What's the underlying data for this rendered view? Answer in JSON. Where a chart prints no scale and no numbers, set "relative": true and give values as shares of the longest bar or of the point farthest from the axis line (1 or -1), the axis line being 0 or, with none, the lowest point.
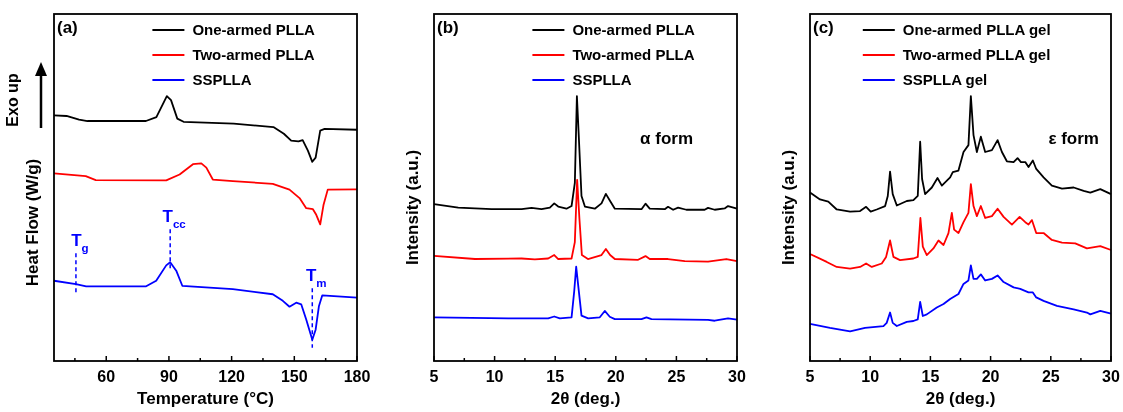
{
  "chart_data": [
    {
      "type": "line",
      "relative": true,
      "xlabel": "Temperature (°C)",
      "ylabel": "Heat Flow (W/g)",
      "legend": "top right",
      "xlim": [
        35,
        180
      ],
      "xticks": [
        {
          "value": 45,
          "label": null
        },
        60,
        {
          "value": 75,
          "label": null
        },
        90,
        {
          "value": 105,
          "label": null
        },
        120,
        {
          "value": 135,
          "label": null
        },
        150,
        {
          "value": 165,
          "label": null
        },
        180
      ],
      "annotations": [
        "(a)",
        "Exo up",
        {
          "text": "T$_{g}$",
          "x": 45.5,
          "y": 0.282
        },
        {
          "text": "T$_{cc}$",
          "x": 90.6,
          "y": 0.373
        },
        {
          "text": "T$_{m}$",
          "x": 158.6,
          "y": 0.08
        }
      ],
      "series": [
        {
          "name": "One-armed PLLA",
          "color": "#000000",
          "x": [
            35,
            41,
            47,
            51,
            79,
            84,
            89,
            91,
            94,
            97,
            121,
            140,
            145,
            148.5,
            152,
            154,
            156.5,
            158.6,
            160.2,
            162.4,
            164.5,
            180
          ],
          "values": [
            0.927,
            0.925,
            0.911,
            0.906,
            0.906,
            0.921,
            1.0,
            0.985,
            0.915,
            0.903,
            0.896,
            0.883,
            0.858,
            0.832,
            0.829,
            0.834,
            0.794,
            0.752,
            0.768,
            0.87,
            0.876,
            0.873
          ]
        },
        {
          "name": "Two-armed PLLA",
          "color": "#ff0000",
          "x": [
            35,
            50.2,
            55,
            88.7,
            95.1,
            101.5,
            105.5,
            107.9,
            111,
            120.6,
            139.7,
            147.7,
            152.5,
            155.7,
            158.9,
            160.5,
            162.4,
            164,
            166,
            180
          ],
          "values": [
            0.708,
            0.698,
            0.683,
            0.682,
            0.704,
            0.743,
            0.746,
            0.73,
            0.685,
            0.679,
            0.669,
            0.647,
            0.615,
            0.577,
            0.573,
            0.552,
            0.516,
            0.59,
            0.647,
            0.648
          ]
        },
        {
          "name": "SSPLLA",
          "color": "#0000ff",
          "x": [
            35,
            45.5,
            50.4,
            79.1,
            83.9,
            88.7,
            90.6,
            93.5,
            96.4,
            120.6,
            139.7,
            144.5,
            147.7,
            150.9,
            153.3,
            155.7,
            158.6,
            160.2,
            161.8,
            163.4,
            180
          ],
          "values": [
            0.303,
            0.29,
            0.282,
            0.282,
            0.303,
            0.361,
            0.373,
            0.341,
            0.284,
            0.271,
            0.252,
            0.227,
            0.205,
            0.22,
            0.214,
            0.157,
            0.08,
            0.118,
            0.208,
            0.248,
            0.239
          ]
        }
      ]
    },
    {
      "type": "line",
      "relative": true,
      "xlabel": "2θ (deg.)",
      "ylabel": "Intensity (a.u.)",
      "legend": "top right",
      "xlim": [
        5,
        30
      ],
      "xticks": [
        5,
        {
          "value": 7.5,
          "label": null
        },
        10,
        {
          "value": 12.5,
          "label": null
        },
        15,
        {
          "value": 17.5,
          "label": null
        },
        20,
        {
          "value": 22.5,
          "label": null
        },
        25,
        {
          "value": 27.5,
          "label": null
        },
        30
      ],
      "annotations": [
        "(b)",
        "α form"
      ],
      "series": [
        {
          "name": "One-armed PLLA",
          "color": "#000000",
          "x": [
            5,
            7,
            9.75,
            12.23,
            13.05,
            13.87,
            14.56,
            14.92,
            15.25,
            15.93,
            16.35,
            16.62,
            16.79,
            16.95,
            17.17,
            17.45,
            18.27,
            18.82,
            19.18,
            19.53,
            19.92,
            22.12,
            22.45,
            22.8,
            24.04,
            24.31,
            24.73,
            25.14,
            25.82,
            27.33,
            27.61,
            28.16,
            28.98,
            29.26,
            30
          ],
          "values": [
            0.592,
            0.579,
            0.573,
            0.573,
            0.578,
            0.573,
            0.579,
            0.595,
            0.583,
            0.575,
            0.585,
            0.672,
            1.0,
            0.845,
            0.623,
            0.583,
            0.575,
            0.595,
            0.631,
            0.604,
            0.575,
            0.573,
            0.594,
            0.575,
            0.573,
            0.582,
            0.571,
            0.579,
            0.571,
            0.571,
            0.578,
            0.571,
            0.576,
            0.585,
            0.575
          ]
        },
        {
          "name": "Two-armed PLLA",
          "color": "#ff0000",
          "x": [
            5,
            8.38,
            12.23,
            13.32,
            14.42,
            14.92,
            15.25,
            16.35,
            16.62,
            16.81,
            17,
            17.2,
            17.7,
            18.82,
            19.18,
            19.53,
            19.92,
            21.84,
            22.45,
            22.8,
            24.31,
            25.69,
            27.61,
            29.12,
            30
          ],
          "values": [
            0.397,
            0.385,
            0.387,
            0.384,
            0.387,
            0.4,
            0.385,
            0.387,
            0.449,
            0.684,
            0.536,
            0.4,
            0.385,
            0.4,
            0.423,
            0.4,
            0.385,
            0.382,
            0.396,
            0.385,
            0.385,
            0.377,
            0.375,
            0.385,
            0.377
          ]
        },
        {
          "name": "SSPLLA",
          "color": "#0000ff",
          "x": [
            5,
            11.13,
            14.42,
            14.92,
            15.38,
            16.35,
            16.57,
            16.73,
            16.92,
            17.17,
            17.72,
            18.68,
            19.09,
            19.5,
            19.92,
            22.12,
            22.53,
            22.94,
            27.61,
            28.16,
            29.26,
            30
          ],
          "values": [
            0.165,
            0.161,
            0.161,
            0.168,
            0.161,
            0.165,
            0.264,
            0.356,
            0.276,
            0.171,
            0.161,
            0.165,
            0.189,
            0.167,
            0.158,
            0.158,
            0.165,
            0.158,
            0.155,
            0.152,
            0.161,
            0.156
          ]
        }
      ]
    },
    {
      "type": "line",
      "relative": true,
      "xlabel": "2θ (deg.)",
      "ylabel": "Intensity (a.u.)",
      "legend": "top right",
      "xlim": [
        5,
        30
      ],
      "xticks": [
        5,
        {
          "value": 7.5,
          "label": null
        },
        10,
        {
          "value": 12.5,
          "label": null
        },
        15,
        {
          "value": 17.5,
          "label": null
        },
        20,
        {
          "value": 22.5,
          "label": null
        },
        25,
        {
          "value": 27.5,
          "label": null
        },
        30
      ],
      "annotations": [
        "(c)",
        "ε form"
      ],
      "series": [
        {
          "name": "One-armed PLLA gel",
          "color": "#000000",
          "x": [
            5,
            5.83,
            6.52,
            7.22,
            8.33,
            9.16,
            9.66,
            10.04,
            10.54,
            11.24,
            11.46,
            11.65,
            11.87,
            12.21,
            13.04,
            13.59,
            13.95,
            14.15,
            14.31,
            14.56,
            15.12,
            15.59,
            15.95,
            16.64,
            16.86,
            17.33,
            17.75,
            18.16,
            18.36,
            18.58,
            18.86,
            19.19,
            19.55,
            20.11,
            20.58,
            20.94,
            21.35,
            21.91,
            22.24,
            22.52,
            22.88,
            23.15,
            23.51,
            23.79,
            24.4,
            25.09,
            25.93,
            26.9,
            27.73,
            28.28,
            29.11,
            30
          ],
          "values": [
            0.636,
            0.61,
            0.602,
            0.572,
            0.564,
            0.566,
            0.582,
            0.564,
            0.572,
            0.585,
            0.623,
            0.715,
            0.63,
            0.587,
            0.604,
            0.607,
            0.623,
            0.828,
            0.687,
            0.63,
            0.655,
            0.691,
            0.662,
            0.693,
            0.713,
            0.719,
            0.789,
            0.815,
            1.0,
            0.853,
            0.789,
            0.847,
            0.789,
            0.796,
            0.834,
            0.789,
            0.754,
            0.751,
            0.766,
            0.751,
            0.751,
            0.732,
            0.757,
            0.725,
            0.693,
            0.662,
            0.651,
            0.655,
            0.642,
            0.636,
            0.649,
            0.63
          ]
        },
        {
          "name": "Two-armed PLLA gel",
          "color": "#ff0000",
          "x": [
            5,
            6.39,
            7.22,
            8.33,
            9.16,
            9.66,
            10.13,
            10.96,
            11.32,
            11.65,
            11.93,
            12.48,
            13.59,
            13.95,
            14.17,
            14.37,
            14.7,
            15.25,
            15.67,
            16.09,
            16.5,
            16.78,
            16.97,
            17.33,
            17.75,
            18.16,
            18.36,
            18.58,
            18.86,
            19.19,
            19.55,
            20.11,
            20.58,
            21.08,
            21.77,
            22.41,
            22.88,
            23.15,
            23.43,
            23.79,
            24.4,
            25.09,
            25.93,
            27.03,
            28,
            29.11,
            30
          ],
          "values": [
            0.404,
            0.374,
            0.355,
            0.349,
            0.355,
            0.368,
            0.355,
            0.368,
            0.393,
            0.455,
            0.393,
            0.381,
            0.387,
            0.393,
            0.54,
            0.432,
            0.4,
            0.425,
            0.455,
            0.438,
            0.483,
            0.559,
            0.496,
            0.483,
            0.524,
            0.559,
            0.668,
            0.585,
            0.547,
            0.585,
            0.54,
            0.547,
            0.575,
            0.544,
            0.515,
            0.544,
            0.524,
            0.515,
            0.532,
            0.483,
            0.483,
            0.457,
            0.447,
            0.444,
            0.425,
            0.434,
            0.419
          ]
        },
        {
          "name": "SSPLLA gel",
          "color": "#0000ff",
          "x": [
            5,
            6.66,
            8.33,
            9.57,
            11.1,
            11.37,
            11.65,
            11.87,
            12.21,
            13.04,
            13.59,
            13.95,
            14.15,
            14.37,
            14.7,
            15.53,
            16.09,
            16.64,
            17.33,
            17.75,
            18.16,
            18.36,
            18.58,
            18.86,
            19.19,
            19.55,
            20.11,
            20.58,
            21.08,
            21.91,
            22.46,
            23.15,
            23.51,
            23.79,
            24.4,
            25.51,
            26.9,
            28,
            28.28,
            29.11,
            30
          ],
          "values": [
            0.14,
            0.125,
            0.112,
            0.125,
            0.132,
            0.144,
            0.183,
            0.144,
            0.132,
            0.148,
            0.151,
            0.157,
            0.223,
            0.17,
            0.176,
            0.202,
            0.215,
            0.234,
            0.253,
            0.291,
            0.304,
            0.361,
            0.31,
            0.31,
            0.327,
            0.304,
            0.31,
            0.323,
            0.298,
            0.278,
            0.272,
            0.259,
            0.259,
            0.24,
            0.227,
            0.208,
            0.195,
            0.183,
            0.176,
            0.189,
            0.179
          ]
        }
      ]
    }
  ]
}
